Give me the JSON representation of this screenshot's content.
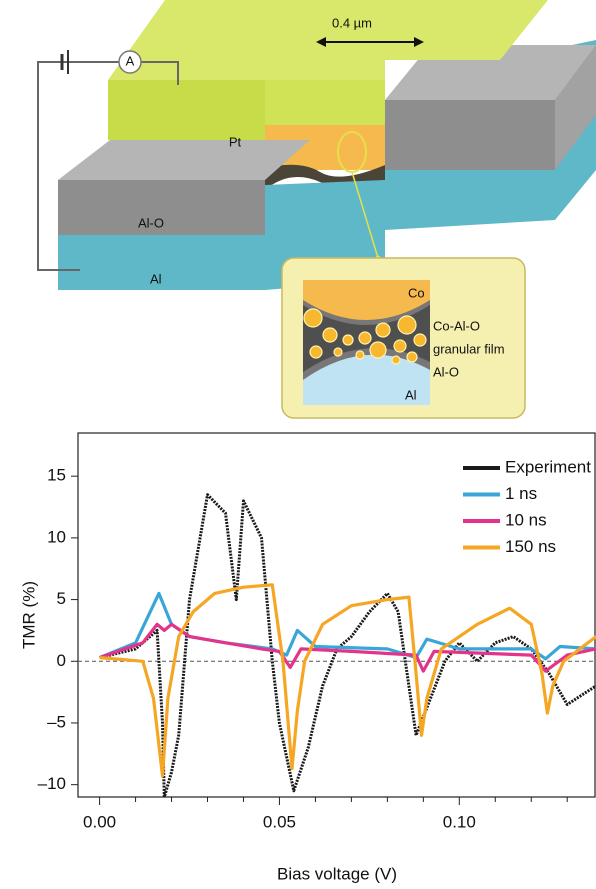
{
  "diagram": {
    "scale_label": "0.4 µm",
    "ammeter": "A",
    "pt": "Pt",
    "alo": "Al-O",
    "al": "Al",
    "inset": {
      "co": "Co",
      "coalo": "Co-Al-O",
      "granular": "granular film",
      "alo": "Al-O",
      "al": "Al"
    }
  },
  "chart_data": {
    "type": "line",
    "x_label": "Bias voltage (V)",
    "y_label": "TMR (%)",
    "xlim": [
      -0.006,
      0.138
    ],
    "ylim": [
      -11,
      18.5
    ],
    "xticks": [
      {
        "value": 0,
        "label": "0.00"
      },
      0.05,
      {
        "value": 0.1,
        "label": "0.10"
      }
    ],
    "xminorticks": [
      0.01,
      0.02,
      0.03,
      0.04,
      0.06,
      0.07,
      0.08,
      0.09,
      0.11,
      0.12,
      0.13
    ],
    "yticks": [
      15,
      10,
      5,
      0,
      {
        "value": -5,
        "label": "–5"
      },
      {
        "value": -10,
        "label": "–10"
      }
    ],
    "zero_line": true,
    "legend": "upper right",
    "series": [
      {
        "name": "Experiment",
        "color": "#1a1a1a",
        "x": [
          0,
          0.01,
          0.016,
          0.0175,
          0.018,
          0.02,
          0.022,
          0.025,
          0.03,
          0.035,
          0.038,
          0.04,
          0.045,
          0.048,
          0.05,
          0.054,
          0.058,
          0.062,
          0.066,
          0.07,
          0.075,
          0.08,
          0.083,
          0.086,
          0.088,
          0.092,
          0.096,
          0.1,
          0.105,
          0.11,
          0.115,
          0.12,
          0.125,
          0.13,
          0.138
        ],
        "values": [
          0.3,
          1,
          2.5,
          -5,
          -11,
          -9,
          -6,
          5,
          13.5,
          12,
          5,
          13,
          10,
          0,
          -5,
          -10.5,
          -7,
          -2,
          1,
          2,
          4,
          5.5,
          4,
          -2,
          -6,
          -3,
          0,
          1.5,
          0,
          1.5,
          2,
          1,
          -1,
          -3.5,
          -2
        ]
      },
      {
        "name": "1 ns",
        "color": "#3aa6d8",
        "x": [
          0,
          0.01,
          0.0165,
          0.02,
          0.025,
          0.035,
          0.048,
          0.052,
          0.055,
          0.06,
          0.08,
          0.088,
          0.091,
          0.1,
          0.12,
          0.124,
          0.128,
          0.138
        ],
        "values": [
          0.3,
          1.5,
          5.5,
          3,
          2,
          1.5,
          1,
          0.5,
          2.5,
          1.2,
          1,
          0.3,
          1.8,
          1,
          1,
          0.2,
          1.2,
          1
        ]
      },
      {
        "name": "10 ns",
        "color": "#e4338b",
        "x": [
          0,
          0.012,
          0.016,
          0.018,
          0.02,
          0.025,
          0.035,
          0.045,
          0.05,
          0.053,
          0.056,
          0.07,
          0.088,
          0.09,
          0.093,
          0.12,
          0.124,
          0.13,
          0.138
        ],
        "values": [
          0.3,
          1.5,
          3,
          2.5,
          3,
          2,
          1.5,
          1,
          0.8,
          -0.5,
          1,
          0.8,
          0.5,
          -0.8,
          0.8,
          0.5,
          -0.8,
          0.5,
          1
        ]
      },
      {
        "name": "150 ns",
        "color": "#f5a623",
        "x": [
          0,
          0.012,
          0.015,
          0.0175,
          0.019,
          0.022,
          0.026,
          0.032,
          0.04,
          0.048,
          0.051,
          0.0535,
          0.055,
          0.057,
          0.062,
          0.07,
          0.08,
          0.086,
          0.088,
          0.0895,
          0.091,
          0.095,
          0.105,
          0.114,
          0.12,
          0.123,
          0.1245,
          0.126,
          0.129,
          0.138
        ],
        "values": [
          0.3,
          0,
          -3,
          -9.3,
          -3,
          2,
          4,
          5.5,
          6,
          6.2,
          0,
          -8.7,
          -4,
          0,
          3,
          4.5,
          5,
          5.2,
          -1,
          -6,
          -3,
          1,
          3,
          4.3,
          3,
          -1,
          -4.2,
          -2,
          0,
          2
        ]
      }
    ]
  }
}
